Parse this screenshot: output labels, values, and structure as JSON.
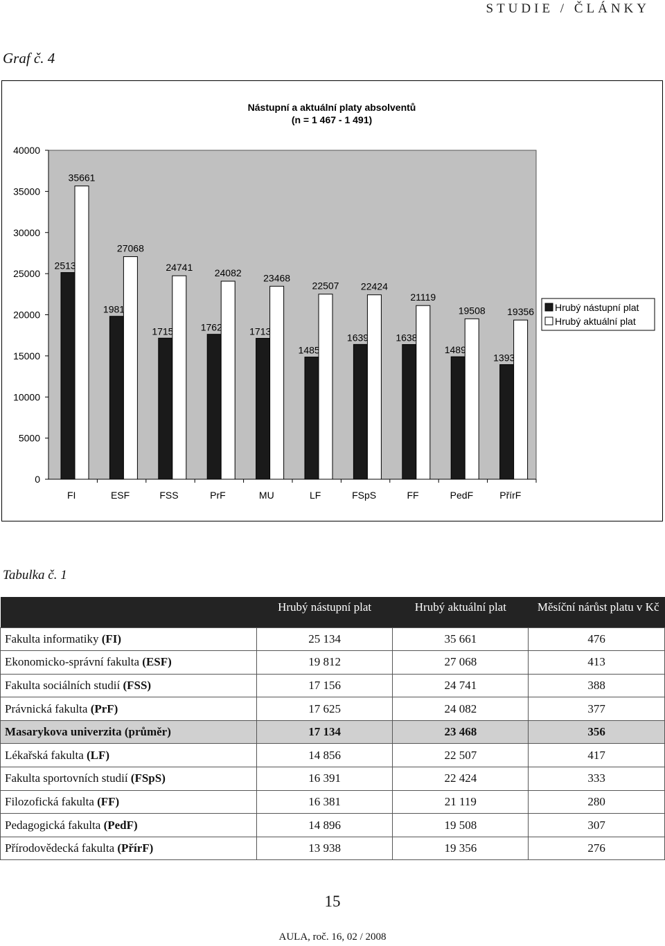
{
  "header": {
    "section": "STUDIE / ČLÁNKY"
  },
  "graf_label": "Graf č. 4",
  "chart_data": {
    "type": "bar",
    "title": "Nástupní a aktuální platy absolventů",
    "subtitle": "(n = 1 467 - 1 491)",
    "categories": [
      "FI",
      "ESF",
      "FSS",
      "PrF",
      "MU",
      "LF",
      "FSpS",
      "FF",
      "PedF",
      "PřírF"
    ],
    "series": [
      {
        "name": "Hrubý nástupní plat",
        "color": "#1a1a1a",
        "values": [
          25134,
          19812,
          17156,
          17625,
          17134,
          14856,
          16391,
          16381,
          14896,
          13938
        ],
        "labels": [
          "25134",
          "19812",
          "17156",
          "17625",
          "17134",
          "14856",
          "16391",
          "16381",
          "14896",
          "13938"
        ]
      },
      {
        "name": "Hrubý aktuální plat",
        "color": "#ffffff",
        "values": [
          35661,
          27068,
          24741,
          24082,
          23468,
          22507,
          22424,
          21119,
          19508,
          19356
        ],
        "labels": [
          "35661",
          "27068",
          "24741",
          "24082",
          "23468",
          "22507",
          "22424",
          "21119",
          "19508",
          "19356"
        ]
      }
    ],
    "yticks": [
      "0",
      "5000",
      "10000",
      "15000",
      "20000",
      "25000",
      "30000",
      "35000",
      "40000"
    ],
    "ylim": [
      0,
      40000
    ],
    "plot_area_color": "#c0c0c0",
    "legend_position": "right",
    "grid": false
  },
  "table": {
    "label": "Tabulka č. 1",
    "headers": [
      "",
      "Hrubý nástupní plat",
      "Hrubý aktuální plat",
      "Měsíční nárůst platu v Kč"
    ],
    "rows": [
      {
        "name": "Fakulta informatiky ",
        "abbr": "(FI)",
        "start": "25 134",
        "current": "35 661",
        "growth": "476"
      },
      {
        "name": "Ekonomicko-správní fakulta ",
        "abbr": "(ESF)",
        "start": "19 812",
        "current": "27 068",
        "growth": "413"
      },
      {
        "name": "Fakulta sociálních studií ",
        "abbr": "(FSS)",
        "start": "17 156",
        "current": "24 741",
        "growth": "388"
      },
      {
        "name": "Právnická fakulta ",
        "abbr": "(PrF)",
        "start": "17 625",
        "current": "24 082",
        "growth": "377"
      },
      {
        "name": "Masarykova univerzita ",
        "abbr": "(průměr)",
        "start": "17 134",
        "current": "23 468",
        "growth": "356",
        "highlight": true
      },
      {
        "name": "Lékařská fakulta ",
        "abbr": "(LF)",
        "start": "14 856",
        "current": "22 507",
        "growth": "417"
      },
      {
        "name": "Fakulta sportovních studií ",
        "abbr": "(FSpS)",
        "start": "16 391",
        "current": "22 424",
        "growth": "333"
      },
      {
        "name": "Filozofická fakulta ",
        "abbr": "(FF)",
        "start": "16 381",
        "current": "21 119",
        "growth": "280"
      },
      {
        "name": "Pedagogická fakulta ",
        "abbr": "(PedF)",
        "start": "14 896",
        "current": "19 508",
        "growth": "307"
      },
      {
        "name": "Přírodovědecká fakulta ",
        "abbr": "(PřírF)",
        "start": "13 938",
        "current": "19 356",
        "growth": "276"
      }
    ]
  },
  "page_number": "15",
  "footer": "AULA, roč. 16, 02 / 2008"
}
